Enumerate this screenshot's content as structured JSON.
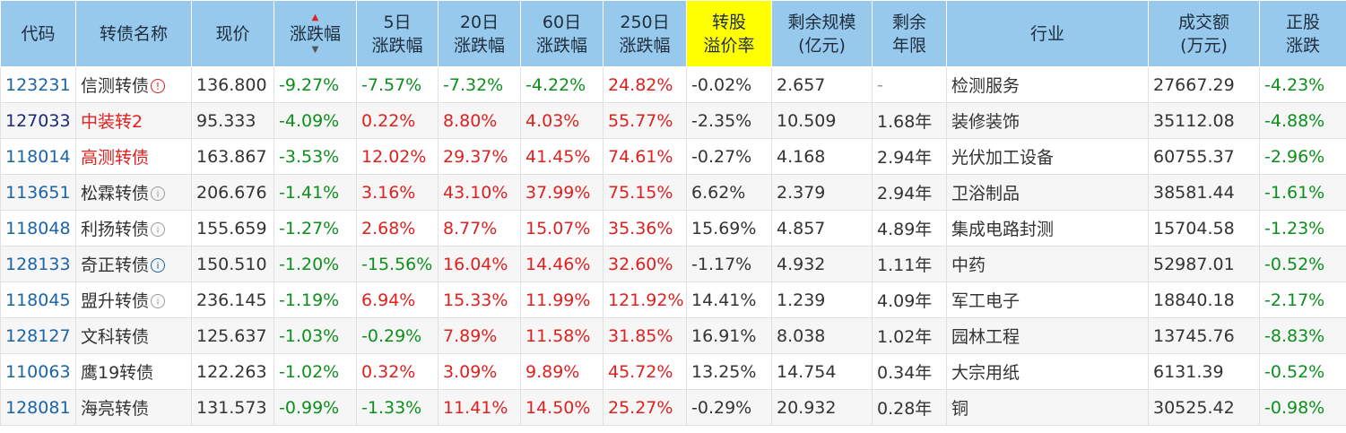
{
  "header": {
    "code": "代码",
    "name": "转债名称",
    "price": "现价",
    "change": "涨跌幅",
    "d5": [
      "5日",
      "涨跌幅"
    ],
    "d20": [
      "20日",
      "涨跌幅"
    ],
    "d60": [
      "60日",
      "涨跌幅"
    ],
    "d250": [
      "250日",
      "涨跌幅"
    ],
    "premium": [
      "转股",
      "溢价率"
    ],
    "scale": [
      "剩余规模",
      "(亿元)"
    ],
    "years": [
      "剩余",
      "年限"
    ],
    "industry": "行业",
    "volume": [
      "成交额",
      "(万元)"
    ],
    "stock": [
      "正股",
      "涨跌"
    ]
  },
  "rows": [
    {
      "code": "123231",
      "name": "信测转债",
      "icon": "red",
      "price": "136.800",
      "change": "-9.27%",
      "d5": "-7.57%",
      "d20": "-7.32%",
      "d60": "-4.22%",
      "d250": "24.82%",
      "premium": "-0.02%",
      "scale": "2.657",
      "years": "-",
      "industry": "检测服务",
      "volume": "27667.29",
      "stock": "-4.23%"
    },
    {
      "code": "127033",
      "name": "中装转2",
      "icon": "",
      "price": "95.333",
      "change": "-4.09%",
      "d5": "0.22%",
      "d20": "8.80%",
      "d60": "4.03%",
      "d250": "55.77%",
      "premium": "-2.35%",
      "scale": "10.509",
      "years": "1.68年",
      "industry": "装修装饰",
      "volume": "35112.08",
      "stock": "-4.88%"
    },
    {
      "code": "118014",
      "name": "高测转债",
      "icon": "",
      "price": "163.867",
      "change": "-3.53%",
      "d5": "12.02%",
      "d20": "29.37%",
      "d60": "41.45%",
      "d250": "74.61%",
      "premium": "-0.27%",
      "scale": "4.168",
      "years": "2.94年",
      "industry": "光伏加工设备",
      "volume": "60755.37",
      "stock": "-2.96%"
    },
    {
      "code": "113651",
      "name": "松霖转债",
      "icon": "gray",
      "price": "206.676",
      "change": "-1.41%",
      "d5": "3.16%",
      "d20": "43.10%",
      "d60": "37.99%",
      "d250": "75.15%",
      "premium": "6.62%",
      "scale": "2.379",
      "years": "2.94年",
      "industry": "卫浴制品",
      "volume": "38581.44",
      "stock": "-1.61%"
    },
    {
      "code": "118048",
      "name": "利扬转债",
      "icon": "gray",
      "price": "155.659",
      "change": "-1.27%",
      "d5": "2.68%",
      "d20": "8.77%",
      "d60": "15.07%",
      "d250": "35.36%",
      "premium": "15.69%",
      "scale": "4.857",
      "years": "4.89年",
      "industry": "集成电路封测",
      "volume": "15704.58",
      "stock": "-1.23%"
    },
    {
      "code": "128133",
      "name": "奇正转债",
      "icon": "blue",
      "price": "150.510",
      "change": "-1.20%",
      "d5": "-15.56%",
      "d20": "16.04%",
      "d60": "14.46%",
      "d250": "32.60%",
      "premium": "-1.17%",
      "scale": "4.932",
      "years": "1.11年",
      "industry": "中药",
      "volume": "52987.01",
      "stock": "-0.52%"
    },
    {
      "code": "118045",
      "name": "盟升转债",
      "icon": "gray",
      "price": "236.145",
      "change": "-1.19%",
      "d5": "6.94%",
      "d20": "15.33%",
      "d60": "11.99%",
      "d250": "121.92%",
      "premium": "14.41%",
      "scale": "1.239",
      "years": "4.09年",
      "industry": "军工电子",
      "volume": "18840.18",
      "stock": "-2.17%"
    },
    {
      "code": "128127",
      "name": "文科转债",
      "icon": "",
      "price": "125.637",
      "change": "-1.03%",
      "d5": "-0.29%",
      "d20": "7.89%",
      "d60": "11.58%",
      "d250": "31.85%",
      "premium": "16.91%",
      "scale": "8.038",
      "years": "1.02年",
      "industry": "园林工程",
      "volume": "13745.76",
      "stock": "-8.83%"
    },
    {
      "code": "110063",
      "name": "鹰19转债",
      "icon": "",
      "price": "122.263",
      "change": "-1.02%",
      "d5": "0.32%",
      "d20": "3.09%",
      "d60": "9.89%",
      "d250": "45.72%",
      "premium": "13.25%",
      "scale": "14.754",
      "years": "0.34年",
      "industry": "大宗用纸",
      "volume": "6131.39",
      "stock": "-0.52%"
    },
    {
      "code": "128081",
      "name": "海亮转债",
      "icon": "",
      "price": "131.573",
      "change": "-0.99%",
      "d5": "-1.33%",
      "d20": "11.41%",
      "d60": "14.50%",
      "d250": "25.27%",
      "premium": "-0.29%",
      "scale": "20.932",
      "years": "0.28年",
      "industry": "铜",
      "volume": "30525.42",
      "stock": "-0.98%"
    }
  ],
  "colors": {
    "header_bg": "#96c9ec",
    "premium_header_bg": "#ffff00",
    "up": "#e0201f",
    "down": "#0c8f1c",
    "code": "#1a64a6"
  }
}
